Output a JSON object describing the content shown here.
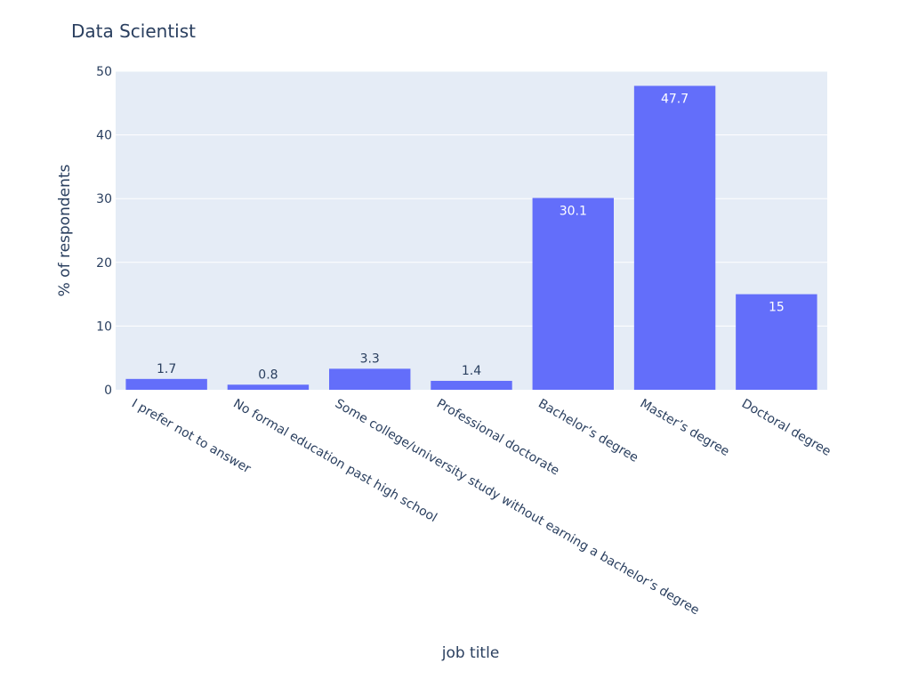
{
  "chart_data": {
    "type": "bar",
    "title": "Data Scientist",
    "xlabel": "job title",
    "ylabel": "% of respondents",
    "categories": [
      "I prefer not to answer",
      "No formal education past high school",
      "Some college/university study without earning a bachelor’s degree",
      "Professional doctorate",
      "Bachelor’s degree",
      "Master’s degree",
      "Doctoral degree"
    ],
    "values": [
      1.7,
      0.8,
      3.3,
      1.4,
      30.1,
      47.7,
      15
    ],
    "data_labels": [
      "1.7",
      "0.8",
      "3.3",
      "1.4",
      "30.1",
      "47.7",
      "15"
    ],
    "ylim": [
      0,
      50
    ],
    "yticks": [
      0,
      10,
      20,
      30,
      40,
      50
    ],
    "grid": true,
    "legend": "none",
    "colors": {
      "bar": "#636efa",
      "plot_background": "#e5ecf6",
      "gridline": "#ffffff",
      "text": "#2a3f5f"
    }
  }
}
